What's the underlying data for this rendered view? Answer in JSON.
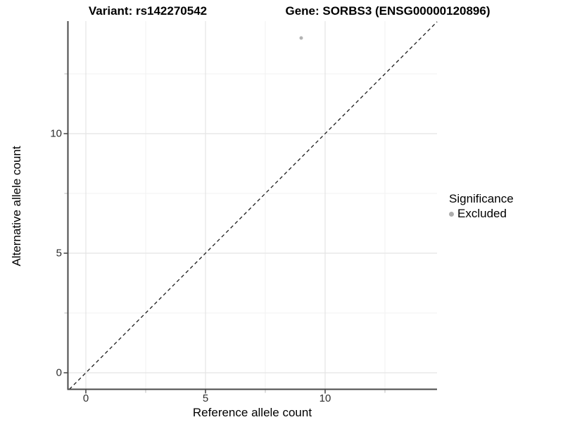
{
  "titles": {
    "left": "Variant: rs142270542",
    "right": "Gene: SORBS3 (ENSG00000120896)"
  },
  "axes": {
    "x": {
      "label": "Reference allele count",
      "tick_labels": [
        "0",
        "5",
        "10"
      ]
    },
    "y": {
      "label": "Alternative allele count",
      "tick_labels": [
        "0",
        "5",
        "10"
      ]
    }
  },
  "legend": {
    "title": "Significance",
    "items": [
      {
        "label": "Excluded",
        "color": "#adadad"
      }
    ]
  },
  "chart_data": {
    "type": "scatter",
    "title": "Variant: rs142270542 | Gene: SORBS3 (ENSG00000120896)",
    "xlabel": "Reference allele count",
    "ylabel": "Alternative allele count",
    "xlim": [
      -0.7,
      14.7
    ],
    "ylim": [
      -0.7,
      14.7
    ],
    "x_major_breaks": [
      0,
      5,
      10
    ],
    "x_minor_breaks": [
      2.5,
      7.5,
      12.5
    ],
    "y_major_breaks": [
      0,
      5,
      10
    ],
    "y_minor_breaks": [
      2.5,
      7.5,
      12.5
    ],
    "grid": "major-and-minor",
    "legend_position": "right",
    "series": [
      {
        "name": "Excluded",
        "points": [
          {
            "x": 9,
            "y": 14
          }
        ],
        "color": "#b3b3b3"
      }
    ],
    "identity_line": {
      "style": "dashed",
      "color": "#1a1a1a",
      "from": [
        -0.69,
        -0.69
      ],
      "to": [
        14.68,
        14.68
      ]
    },
    "colors": {
      "grid_major": "#e4e4e4",
      "grid_minor": "#f2f2f2",
      "axis_line": "#4a4a4a",
      "tick_major": "#333333",
      "tick_minor": "#c6c6c6",
      "point": "#b3b3b3"
    }
  }
}
